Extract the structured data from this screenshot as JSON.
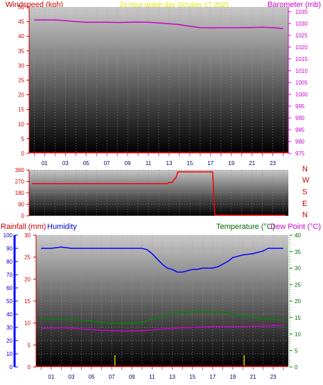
{
  "header": {
    "left_title": "Windspeed (kph)",
    "center_title": "24 hour graph day   October 17 2025",
    "right_title": "Barometer (mb)"
  },
  "colors": {
    "wind": "#cc0000",
    "barometer": "#cc00cc",
    "title_center": "#e6e600",
    "direction": "#cc0000",
    "humidity": "#0000cc",
    "temperature": "#006600",
    "dewpoint": "#cc00cc",
    "rain": "#cc0000",
    "rain_bars": "#cccc00"
  },
  "chart_data": [
    {
      "type": "line",
      "name_hint": "wind-barometer",
      "x_ticks": [
        "01",
        "03",
        "05",
        "07",
        "09",
        "11",
        "13",
        "15",
        "17",
        "19",
        "21",
        "23"
      ],
      "left_axis": {
        "label": "Windspeed (kph)",
        "ylim": [
          0,
          50
        ],
        "ticks": [
          0,
          5,
          10,
          15,
          20,
          25,
          30,
          35,
          40,
          45,
          50
        ]
      },
      "right_axis": {
        "label": "Barometer (mb)",
        "ylim": [
          975,
          1037
        ],
        "ticks": [
          975,
          980,
          985,
          990,
          995,
          1000,
          1005,
          1010,
          1015,
          1020,
          1025,
          1030,
          1035
        ]
      },
      "series": [
        {
          "name": "Barometer (mb)",
          "axis": "right",
          "x": [
            0,
            1,
            2,
            3,
            4,
            5,
            6,
            7,
            8,
            9,
            10,
            11,
            12,
            13,
            14,
            15,
            16,
            17,
            18,
            19,
            20,
            21,
            22,
            23,
            24
          ],
          "y": [
            1031.5,
            1031.5,
            1031.5,
            1031.2,
            1030.8,
            1030.5,
            1030.5,
            1030.5,
            1030.4,
            1030.5,
            1030.6,
            1030.5,
            1030.2,
            1029.9,
            1029.5,
            1028.8,
            1028.2,
            1028.1,
            1028.2,
            1028.2,
            1028.2,
            1028.3,
            1028.4,
            1028.2,
            1027.8
          ]
        },
        {
          "name": "Windspeed (kph)",
          "axis": "left",
          "x": [
            0,
            24
          ],
          "y": [
            0,
            0
          ]
        }
      ]
    },
    {
      "type": "line",
      "name_hint": "wind-direction",
      "ylim": [
        0,
        360
      ],
      "ticks": [
        0,
        90,
        180,
        270,
        360
      ],
      "direction_labels": [
        "N",
        "W",
        "S",
        "E",
        "N"
      ],
      "series": [
        {
          "name": "Wind direction",
          "x": [
            0,
            12.8,
            13.0,
            13.3,
            13.5,
            13.6,
            13.8,
            16.8,
            17.1,
            17.3,
            24
          ],
          "y": [
            252,
            252,
            262,
            262,
            292,
            292,
            345,
            345,
            345,
            5,
            5
          ]
        }
      ]
    },
    {
      "type": "line",
      "name_hint": "rain-humidity-temperature",
      "x_ticks": [
        "01",
        "03",
        "05",
        "07",
        "09",
        "11",
        "13",
        "15",
        "17",
        "19",
        "21",
        "23"
      ],
      "humidity_axis": {
        "label": "Humidity",
        "ylim": [
          0,
          100
        ],
        "ticks": [
          0,
          10,
          20,
          30,
          40,
          50,
          60,
          70,
          80,
          90,
          100
        ]
      },
      "rain_axis": {
        "label": "Rainfall (mm)",
        "ylim": [
          0,
          30
        ],
        "ticks": [
          0,
          5,
          10,
          15,
          20,
          25,
          30
        ]
      },
      "temp_axis": {
        "label": "Temperature (°C)",
        "ylim": [
          0,
          40
        ],
        "ticks": [
          0,
          5,
          10,
          15,
          20,
          25,
          30,
          35,
          40
        ]
      },
      "dew_label": "Dew Point (°C)",
      "rain_events": [
        {
          "x": 7.5,
          "value": 1.2
        },
        {
          "x": 19.8,
          "value": 1.2
        }
      ],
      "series": [
        {
          "name": "Humidity",
          "axis": "humidity",
          "x": [
            0,
            1,
            2,
            3,
            4,
            5,
            6,
            7,
            8,
            9,
            10,
            10.5,
            11,
            11.5,
            12,
            12.5,
            13,
            13.5,
            14,
            14.5,
            15,
            15.5,
            16,
            16.5,
            17,
            17.5,
            18,
            18.5,
            19,
            20,
            21,
            22,
            22.5,
            23,
            24
          ],
          "y": [
            90,
            90,
            91,
            90,
            90,
            90,
            90,
            90,
            90,
            90,
            90,
            89,
            86,
            82,
            78,
            75,
            74,
            72,
            72,
            73,
            74,
            74,
            75,
            75,
            75,
            76,
            78,
            80,
            83,
            85,
            86,
            88,
            90,
            90,
            90
          ]
        },
        {
          "name": "Temperature (°C)",
          "axis": "temp",
          "x": [
            0,
            1,
            2,
            3,
            4,
            5,
            6,
            7,
            8,
            9,
            10,
            11,
            12,
            13,
            14,
            15,
            16,
            17,
            18,
            19,
            20,
            21,
            22,
            23,
            24
          ],
          "y": [
            14.5,
            14.5,
            14.4,
            14.3,
            14.2,
            13.9,
            13.5,
            13.3,
            13.2,
            13.2,
            13.5,
            14.5,
            15.4,
            16.0,
            16.5,
            16.8,
            16.8,
            16.6,
            16.5,
            16.0,
            15.6,
            15.0,
            14.6,
            14.4,
            14.3
          ]
        },
        {
          "name": "Dew Point (°C)",
          "axis": "temp",
          "x": [
            0,
            1,
            2,
            3,
            4,
            5,
            6,
            7,
            8,
            9,
            10,
            11,
            12,
            13,
            14,
            15,
            16,
            17,
            18,
            19,
            20,
            21,
            22,
            23,
            24
          ],
          "y": [
            11.7,
            11.8,
            11.9,
            11.8,
            11.5,
            11.3,
            11.1,
            11.0,
            10.9,
            10.9,
            11.0,
            11.2,
            11.5,
            11.7,
            11.9,
            12.0,
            12.2,
            12.3,
            12.3,
            12.3,
            12.3,
            12.4,
            12.4,
            12.6,
            12.5
          ]
        },
        {
          "name": "Rainfall (mm)",
          "axis": "rain",
          "x": [
            0,
            24
          ],
          "y": [
            0,
            0
          ]
        }
      ]
    }
  ]
}
